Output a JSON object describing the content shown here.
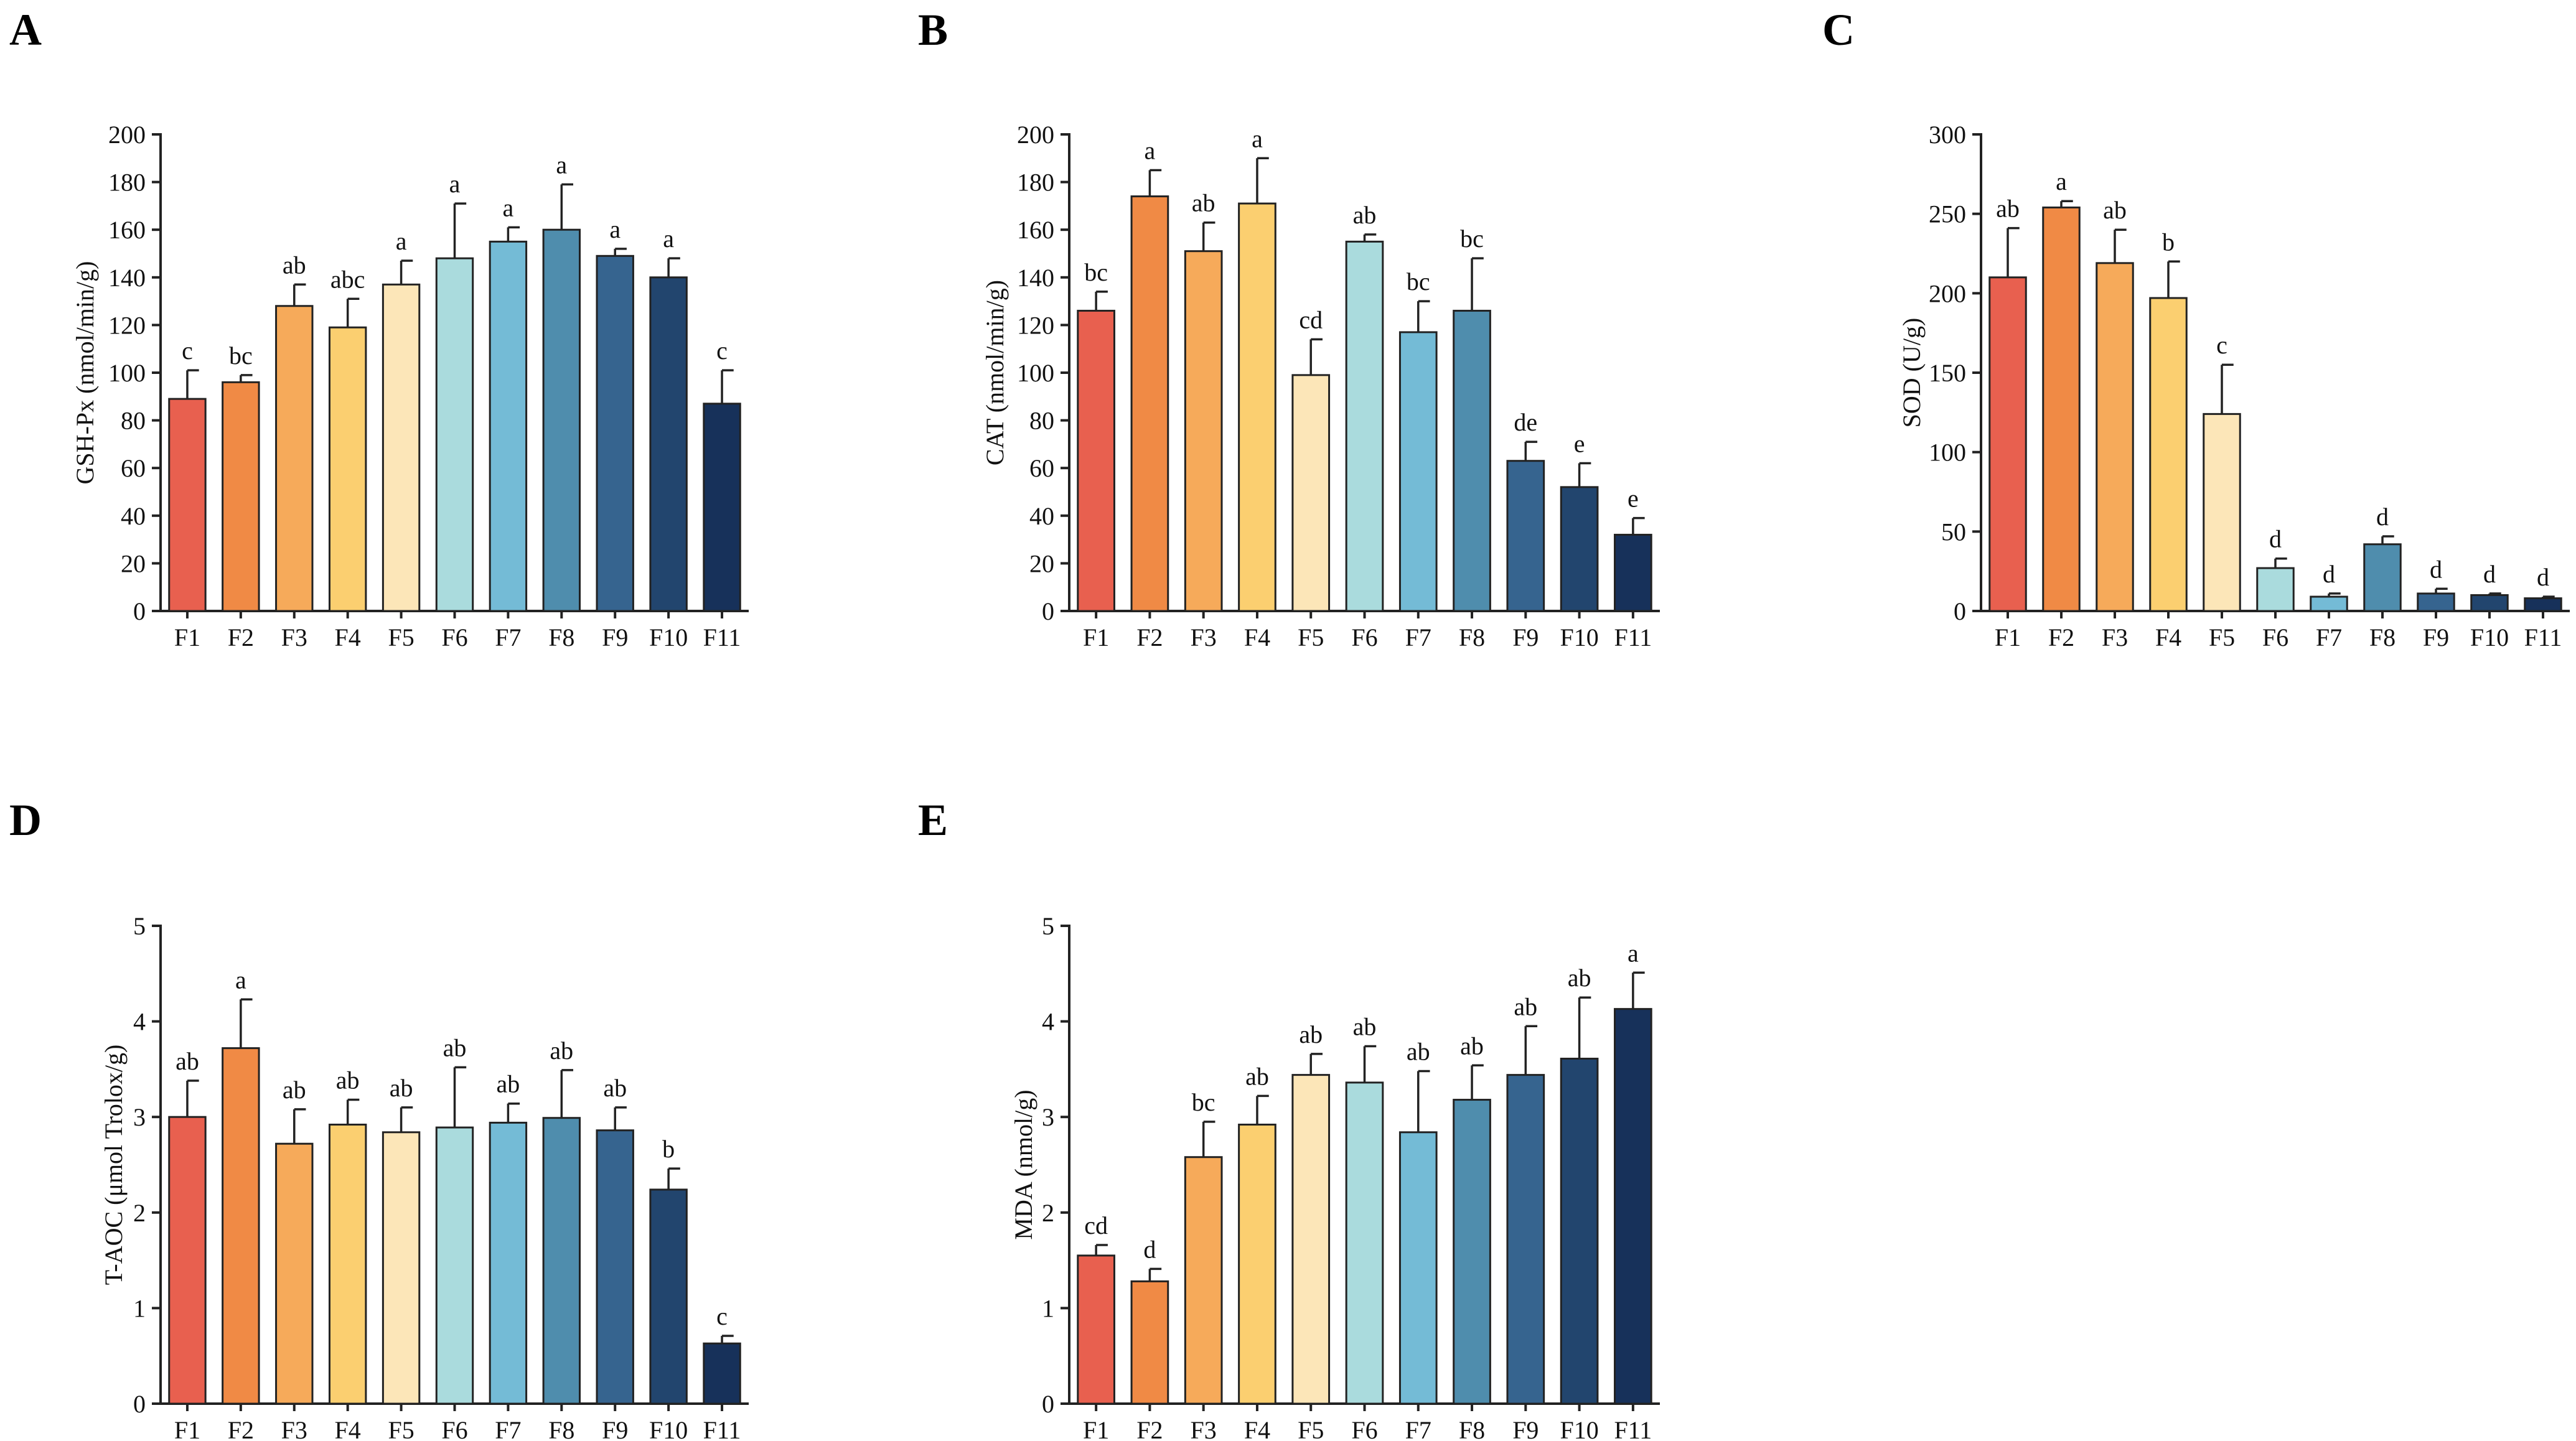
{
  "colors": [
    "#E8604F",
    "#F08A45",
    "#F6AA5A",
    "#FBCF70",
    "#FCE6B8",
    "#AADBDD",
    "#74BBD6",
    "#4F8DAD",
    "#36648F",
    "#22456E",
    "#17315A"
  ],
  "chart_data": [
    {
      "type": "bar",
      "panel": "A",
      "categories": [
        "F1",
        "F2",
        "F3",
        "F4",
        "F5",
        "F6",
        "F7",
        "F8",
        "F9",
        "F10",
        "F11"
      ],
      "values": [
        89,
        96,
        128,
        119,
        137,
        148,
        155,
        160,
        149,
        140,
        87
      ],
      "errors": [
        12,
        3,
        9,
        12,
        10,
        23,
        6,
        19,
        3,
        8,
        14
      ],
      "significance": [
        "c",
        "bc",
        "ab",
        "abc",
        "a",
        "a",
        "a",
        "a",
        "a",
        "a",
        "c"
      ],
      "ylabel": "GSH-Px (nmol/min/g)",
      "ylim": [
        0,
        200
      ],
      "yticks": [
        0,
        20,
        40,
        60,
        80,
        100,
        120,
        140,
        160,
        180,
        200
      ]
    },
    {
      "type": "bar",
      "panel": "B",
      "categories": [
        "F1",
        "F2",
        "F3",
        "F4",
        "F5",
        "F6",
        "F7",
        "F8",
        "F9",
        "F10",
        "F11"
      ],
      "values": [
        126,
        174,
        151,
        171,
        99,
        155,
        117,
        126,
        63,
        52,
        32
      ],
      "errors": [
        8,
        11,
        12,
        19,
        15,
        3,
        13,
        22,
        8,
        10,
        7
      ],
      "significance": [
        "bc",
        "a",
        "ab",
        "a",
        "cd",
        "ab",
        "bc",
        "bc",
        "de",
        "e",
        "e"
      ],
      "ylabel": "CAT (nmol/min/g)",
      "ylim": [
        0,
        200
      ],
      "yticks": [
        0,
        20,
        40,
        60,
        80,
        100,
        120,
        140,
        160,
        180,
        200
      ]
    },
    {
      "type": "bar",
      "panel": "C",
      "categories": [
        "F1",
        "F2",
        "F3",
        "F4",
        "F5",
        "F6",
        "F7",
        "F8",
        "F9",
        "F10",
        "F11"
      ],
      "values": [
        210,
        254,
        219,
        197,
        124,
        27,
        9,
        42,
        11,
        10,
        8
      ],
      "errors": [
        31,
        4,
        21,
        23,
        31,
        6,
        2,
        5,
        3,
        1,
        1
      ],
      "significance": [
        "ab",
        "a",
        "ab",
        "b",
        "c",
        "d",
        "d",
        "d",
        "d",
        "d",
        "d"
      ],
      "ylabel": "SOD (U/g)",
      "ylim": [
        0,
        300
      ],
      "yticks": [
        0,
        50,
        100,
        150,
        200,
        250,
        300
      ]
    },
    {
      "type": "bar",
      "panel": "D",
      "categories": [
        "F1",
        "F2",
        "F3",
        "F4",
        "F5",
        "F6",
        "F7",
        "F8",
        "F9",
        "F10",
        "F11"
      ],
      "values": [
        3.0,
        3.72,
        2.72,
        2.92,
        2.84,
        2.89,
        2.94,
        2.99,
        2.86,
        2.24,
        0.63
      ],
      "errors": [
        0.38,
        0.51,
        0.36,
        0.26,
        0.26,
        0.63,
        0.2,
        0.5,
        0.24,
        0.22,
        0.08
      ],
      "significance": [
        "ab",
        "a",
        "ab",
        "ab",
        "ab",
        "ab",
        "ab",
        "ab",
        "ab",
        "b",
        "c"
      ],
      "ylabel": "T-AOC (μmol Trolox/g)",
      "ylim": [
        0,
        5
      ],
      "yticks": [
        0,
        1,
        2,
        3,
        4,
        5
      ]
    },
    {
      "type": "bar",
      "panel": "E",
      "categories": [
        "F1",
        "F2",
        "F3",
        "F4",
        "F5",
        "F6",
        "F7",
        "F8",
        "F9",
        "F10",
        "F11"
      ],
      "values": [
        1.55,
        1.28,
        2.58,
        2.92,
        3.44,
        3.36,
        2.84,
        3.18,
        3.44,
        3.61,
        4.13
      ],
      "errors": [
        0.11,
        0.13,
        0.37,
        0.3,
        0.22,
        0.38,
        0.64,
        0.36,
        0.51,
        0.64,
        0.38
      ],
      "significance": [
        "cd",
        "d",
        "bc",
        "ab",
        "ab",
        "ab",
        "ab",
        "ab",
        "ab",
        "ab",
        "a"
      ],
      "ylabel": "MDA (nmol/g)",
      "ylim": [
        0,
        5
      ],
      "yticks": [
        0,
        1,
        2,
        3,
        4,
        5
      ]
    }
  ]
}
